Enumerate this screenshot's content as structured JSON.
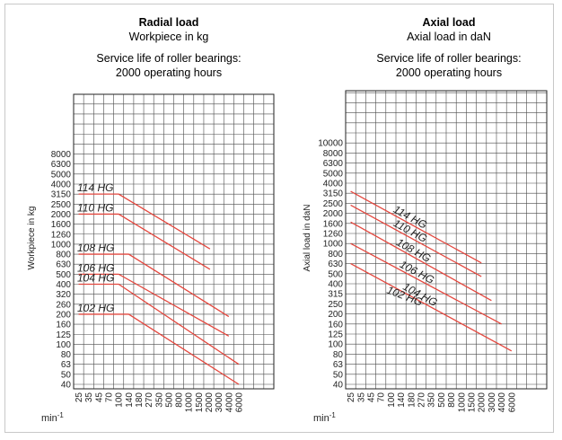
{
  "chart_data": [
    {
      "type": "line",
      "title": "Radial load",
      "subtitle": "Workpiece in kg",
      "note_line1": "Service life of roller bearings:",
      "note_line2": "2000 operating hours",
      "ylabel": "Workpiece in kg",
      "xlabel": "min-1",
      "x_scale": "log",
      "y_scale": "log",
      "grid": true,
      "x_ticks": [
        "25",
        "35",
        "45",
        "70",
        "100",
        "140",
        "180",
        "270",
        "350",
        "500",
        "800",
        "1000",
        "1500",
        "2000",
        "3000",
        "4000",
        "6000"
      ],
      "y_ticks": [
        "40",
        "50",
        "63",
        "80",
        "100",
        "125",
        "160",
        "200",
        "260",
        "320",
        "400",
        "500",
        "630",
        "800",
        "1000",
        "1260",
        "1600",
        "2000",
        "2500",
        "3150",
        "4000",
        "5000",
        "6300",
        "8000"
      ],
      "series": [
        {
          "name": "114 HG",
          "points": [
            [
              25,
              3150
            ],
            [
              100,
              3150
            ],
            [
              2100,
              900
            ]
          ]
        },
        {
          "name": "110 HG",
          "points": [
            [
              25,
              2000
            ],
            [
              100,
              2000
            ],
            [
              2100,
              560
            ]
          ]
        },
        {
          "name": "108 HG",
          "points": [
            [
              25,
              800
            ],
            [
              140,
              800
            ],
            [
              4000,
              190
            ]
          ]
        },
        {
          "name": "106 HG",
          "points": [
            [
              25,
              500
            ],
            [
              100,
              500
            ],
            [
              4000,
              120
            ]
          ]
        },
        {
          "name": "104 HG",
          "points": [
            [
              25,
              400
            ],
            [
              100,
              400
            ],
            [
              6000,
              63
            ]
          ]
        },
        {
          "name": "102 HG",
          "points": [
            [
              25,
              200
            ],
            [
              140,
              200
            ],
            [
              6000,
              40
            ]
          ]
        }
      ]
    },
    {
      "type": "line",
      "title": "Axial load",
      "subtitle": "Axial load in daN",
      "note_line1": "Service life of roller bearings:",
      "note_line2": "2000 operating hours",
      "ylabel": "Axial load in daN",
      "xlabel": "min-1",
      "x_scale": "log",
      "y_scale": "log",
      "grid": true,
      "x_ticks": [
        "25",
        "35",
        "45",
        "70",
        "100",
        "140",
        "180",
        "270",
        "350",
        "500",
        "800",
        "1000",
        "1500",
        "2000",
        "3000",
        "4000",
        "6000"
      ],
      "y_ticks": [
        "40",
        "50",
        "63",
        "80",
        "100",
        "125",
        "160",
        "200",
        "250",
        "315",
        "400",
        "500",
        "630",
        "800",
        "1000",
        "1260",
        "1600",
        "2000",
        "2500",
        "3150",
        "4000",
        "5000",
        "6300",
        "8000",
        "10000"
      ],
      "series": [
        {
          "name": "114 HG",
          "points": [
            [
              25,
              3300
            ],
            [
              2000,
              640
            ]
          ]
        },
        {
          "name": "110 HG",
          "points": [
            [
              25,
              2400
            ],
            [
              2000,
              470
            ]
          ]
        },
        {
          "name": "108 HG",
          "points": [
            [
              25,
              1650
            ],
            [
              3000,
              270
            ]
          ]
        },
        {
          "name": "106 HG",
          "points": [
            [
              25,
              1000
            ],
            [
              4000,
              160
            ]
          ]
        },
        {
          "name": "104 HG",
          "points": [
            [
              25,
              630
            ],
            [
              6000,
              86
            ]
          ]
        },
        {
          "name": "102 HG",
          "points": []
        }
      ]
    }
  ]
}
